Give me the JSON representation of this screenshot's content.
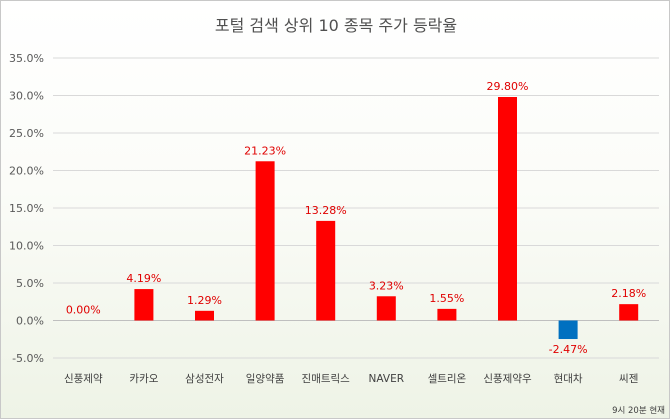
{
  "chart_data": {
    "type": "bar",
    "title": "포털 검색 상위 10 종목 주가 등락율",
    "categories": [
      "신풍제약",
      "카카오",
      "삼성전자",
      "일양약품",
      "진매트릭스",
      "NAVER",
      "셀트리온",
      "신풍제약우",
      "현대차",
      "씨젠"
    ],
    "values": [
      0.0,
      4.19,
      1.29,
      21.23,
      13.28,
      3.23,
      1.55,
      29.8,
      -2.47,
      2.18
    ],
    "data_labels": [
      "0.00%",
      "4.19%",
      "1.29%",
      "21.23%",
      "13.28%",
      "3.23%",
      "1.55%",
      "29.80%",
      "-2.47%",
      "2.18%"
    ],
    "ylim": [
      -5,
      35
    ],
    "yticks": [
      -5,
      0,
      5,
      10,
      15,
      20,
      25,
      30,
      35
    ],
    "ytick_labels": [
      "-5.0%",
      "0.0%",
      "5.0%",
      "10.0%",
      "15.0%",
      "20.0%",
      "25.0%",
      "30.0%",
      "35.0%"
    ],
    "xlabel": "",
    "ylabel": "",
    "grid": true,
    "legend": "none",
    "colors": {
      "positive": "#ff0000",
      "negative": "#0070c0",
      "label": "#e00000",
      "grid": "#d9d9d9"
    },
    "footnote": "9시 20분 현재"
  }
}
